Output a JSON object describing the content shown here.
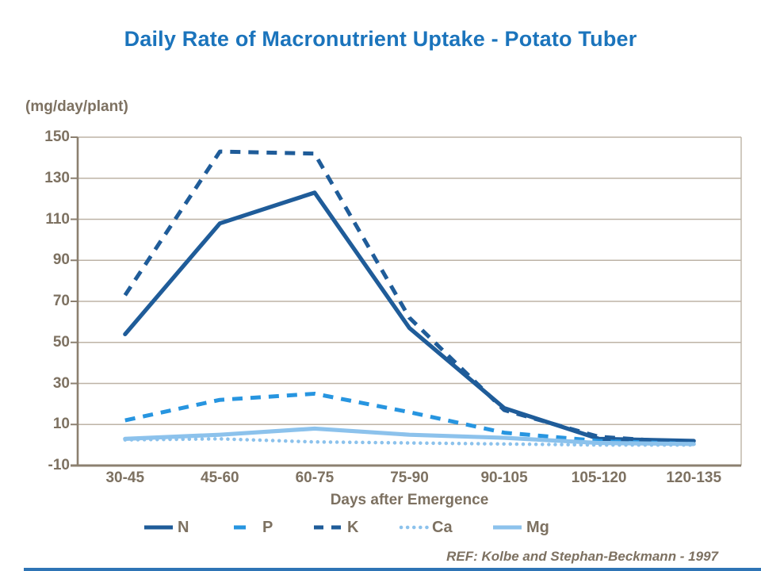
{
  "title": "Daily Rate of Macronutrient Uptake - Potato Tuber",
  "ref": "REF: Kolbe and Stephan-Beckmann - 1997",
  "chart_data": {
    "type": "line",
    "title": "Daily Rate of Macronutrient Uptake - Potato Tuber",
    "ylabel": "(mg/day/plant)",
    "xlabel": "Days after Emergence",
    "categories": [
      "30-45",
      "45-60",
      "60-75",
      "75-90",
      "90-105",
      "105-120",
      "120-135"
    ],
    "yticks": [
      -10,
      10,
      30,
      50,
      70,
      90,
      110,
      130,
      150
    ],
    "ylim": [
      -10,
      150
    ],
    "grid": true,
    "legend_position": "bottom",
    "series": [
      {
        "name": "N",
        "values": [
          54,
          108,
          123,
          57,
          18,
          3,
          2
        ],
        "color": "#1F5C99",
        "style": "solid",
        "swatch": "solid-line"
      },
      {
        "name": "P",
        "values": [
          12,
          22,
          25,
          16,
          6,
          2,
          0.5
        ],
        "color": "#2795E0",
        "style": "dashed",
        "swatch": "single-dash"
      },
      {
        "name": "K",
        "values": [
          73,
          143,
          142,
          62,
          17,
          4,
          1
        ],
        "color": "#1F5C99",
        "style": "dashed",
        "swatch": "double-dash"
      },
      {
        "name": "Ca",
        "values": [
          2.5,
          3,
          1.5,
          1,
          0.5,
          0,
          0
        ],
        "color": "#8CC2EC",
        "style": "dotted",
        "swatch": "dots"
      },
      {
        "name": "Mg",
        "values": [
          3,
          5,
          8,
          5,
          3.5,
          1,
          0.5
        ],
        "color": "#8CC2EC",
        "style": "solid",
        "swatch": "solid-line"
      }
    ]
  },
  "colors": {
    "title_blue": "#1B74BC",
    "axis_text": "#7D7161",
    "axis_line": "#8C8070",
    "gridline": "#BDB3A6",
    "dark_blue": "#1F5C99",
    "medium_blue": "#2795E0",
    "light_blue": "#8CC2EC",
    "bottom_rule": "#2E74B5"
  }
}
